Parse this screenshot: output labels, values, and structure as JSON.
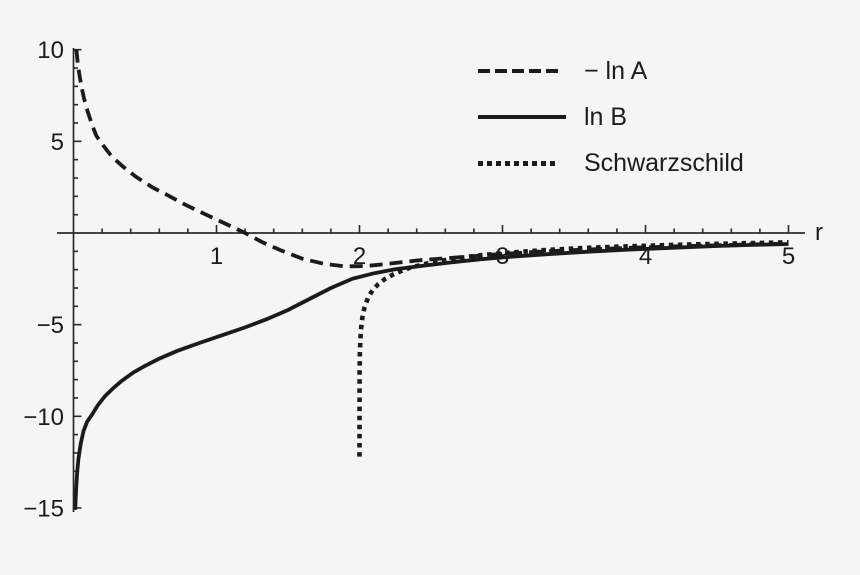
{
  "figure": {
    "background": "#f5f5f5",
    "ink": "#1b1b1b",
    "axis_color": "#2a2a2a"
  },
  "chart_data": {
    "type": "line",
    "title": "",
    "xlabel": "r",
    "ylabel": "",
    "xlim": [
      -0.12,
      5.12
    ],
    "ylim": [
      -15.3,
      10.3
    ],
    "grid": false,
    "legend_position": "top-right-inside",
    "axes": {
      "x": {
        "label": "r",
        "major": [
          [
            1,
            "1"
          ],
          [
            2,
            "2"
          ],
          [
            3,
            "3"
          ],
          [
            4,
            "4"
          ],
          [
            5,
            "5"
          ]
        ],
        "minor_step": 0.2,
        "range": [
          0,
          5
        ]
      },
      "y": {
        "major": [
          [
            10,
            "10"
          ],
          [
            5,
            "5"
          ],
          [
            -5,
            "−5"
          ],
          [
            -10,
            "−10"
          ],
          [
            -15,
            "−15"
          ]
        ],
        "minor_step": 1,
        "range": [
          -15,
          10
        ]
      }
    },
    "legend": [
      {
        "label": "− ln A",
        "style": "dashed"
      },
      {
        "label": "ln B",
        "style": "solid"
      },
      {
        "label": "Schwarzschild",
        "style": "dotted"
      }
    ],
    "series": [
      {
        "name": "− ln A",
        "style": "dashed",
        "points": [
          [
            0.02,
            10.0
          ],
          [
            0.028,
            9.4
          ],
          [
            0.04,
            8.7
          ],
          [
            0.055,
            8.0
          ],
          [
            0.075,
            7.3
          ],
          [
            0.1,
            6.6
          ],
          [
            0.13,
            5.9
          ],
          [
            0.16,
            5.3
          ],
          [
            0.2,
            4.85
          ],
          [
            0.27,
            4.15
          ],
          [
            0.35,
            3.6
          ],
          [
            0.44,
            3.05
          ],
          [
            0.55,
            2.5
          ],
          [
            0.65,
            2.1
          ],
          [
            0.78,
            1.55
          ],
          [
            0.9,
            1.1
          ],
          [
            1.05,
            0.55
          ],
          [
            1.2,
            0.0
          ],
          [
            1.32,
            -0.5
          ],
          [
            1.45,
            -0.95
          ],
          [
            1.6,
            -1.4
          ],
          [
            1.75,
            -1.68
          ],
          [
            1.9,
            -1.82
          ],
          [
            2.05,
            -1.8
          ],
          [
            2.2,
            -1.68
          ],
          [
            2.4,
            -1.5
          ],
          [
            2.6,
            -1.38
          ],
          [
            2.8,
            -1.26
          ],
          [
            3.0,
            -1.14
          ],
          [
            3.3,
            -1.0
          ],
          [
            3.6,
            -0.9
          ],
          [
            3.9,
            -0.81
          ],
          [
            4.2,
            -0.73
          ],
          [
            4.5,
            -0.67
          ],
          [
            4.75,
            -0.62
          ],
          [
            5.0,
            -0.58
          ]
        ]
      },
      {
        "name": "ln B",
        "style": "solid",
        "points": [
          [
            0.012,
            -15.1
          ],
          [
            0.018,
            -14.0
          ],
          [
            0.025,
            -13.1
          ],
          [
            0.035,
            -12.3
          ],
          [
            0.05,
            -11.5
          ],
          [
            0.07,
            -10.8
          ],
          [
            0.095,
            -10.3
          ],
          [
            0.13,
            -9.9
          ],
          [
            0.17,
            -9.4
          ],
          [
            0.22,
            -8.9
          ],
          [
            0.28,
            -8.45
          ],
          [
            0.34,
            -8.05
          ],
          [
            0.42,
            -7.6
          ],
          [
            0.5,
            -7.25
          ],
          [
            0.6,
            -6.85
          ],
          [
            0.72,
            -6.45
          ],
          [
            0.88,
            -6.0
          ],
          [
            1.05,
            -5.55
          ],
          [
            1.2,
            -5.15
          ],
          [
            1.35,
            -4.7
          ],
          [
            1.5,
            -4.2
          ],
          [
            1.65,
            -3.6
          ],
          [
            1.8,
            -3.0
          ],
          [
            1.95,
            -2.5
          ],
          [
            2.1,
            -2.2
          ],
          [
            2.25,
            -1.98
          ],
          [
            2.45,
            -1.78
          ],
          [
            2.65,
            -1.6
          ],
          [
            2.85,
            -1.43
          ],
          [
            3.05,
            -1.3
          ],
          [
            3.3,
            -1.16
          ],
          [
            3.6,
            -1.02
          ],
          [
            3.9,
            -0.9
          ],
          [
            4.2,
            -0.8
          ],
          [
            4.5,
            -0.71
          ],
          [
            4.75,
            -0.65
          ],
          [
            5.0,
            -0.6
          ]
        ]
      },
      {
        "name": "Schwarzschild",
        "style": "dotted",
        "points": [
          [
            2.0,
            -12.2
          ],
          [
            2.0005,
            -8.3
          ],
          [
            2.001,
            -7.6
          ],
          [
            2.003,
            -6.5
          ],
          [
            2.006,
            -5.8
          ],
          [
            2.01,
            -5.3
          ],
          [
            2.02,
            -4.6
          ],
          [
            2.035,
            -4.06
          ],
          [
            2.06,
            -3.53
          ],
          [
            2.09,
            -3.13
          ],
          [
            2.13,
            -2.8
          ],
          [
            2.18,
            -2.5
          ],
          [
            2.25,
            -2.2
          ],
          [
            2.35,
            -1.9
          ],
          [
            2.5,
            -1.61
          ],
          [
            2.65,
            -1.41
          ],
          [
            2.85,
            -1.21
          ],
          [
            3.05,
            -1.07
          ],
          [
            3.3,
            -0.93
          ],
          [
            3.6,
            -0.81
          ],
          [
            3.9,
            -0.72
          ],
          [
            4.2,
            -0.65
          ],
          [
            4.5,
            -0.59
          ],
          [
            4.75,
            -0.55
          ],
          [
            5.0,
            -0.51
          ]
        ]
      }
    ]
  }
}
